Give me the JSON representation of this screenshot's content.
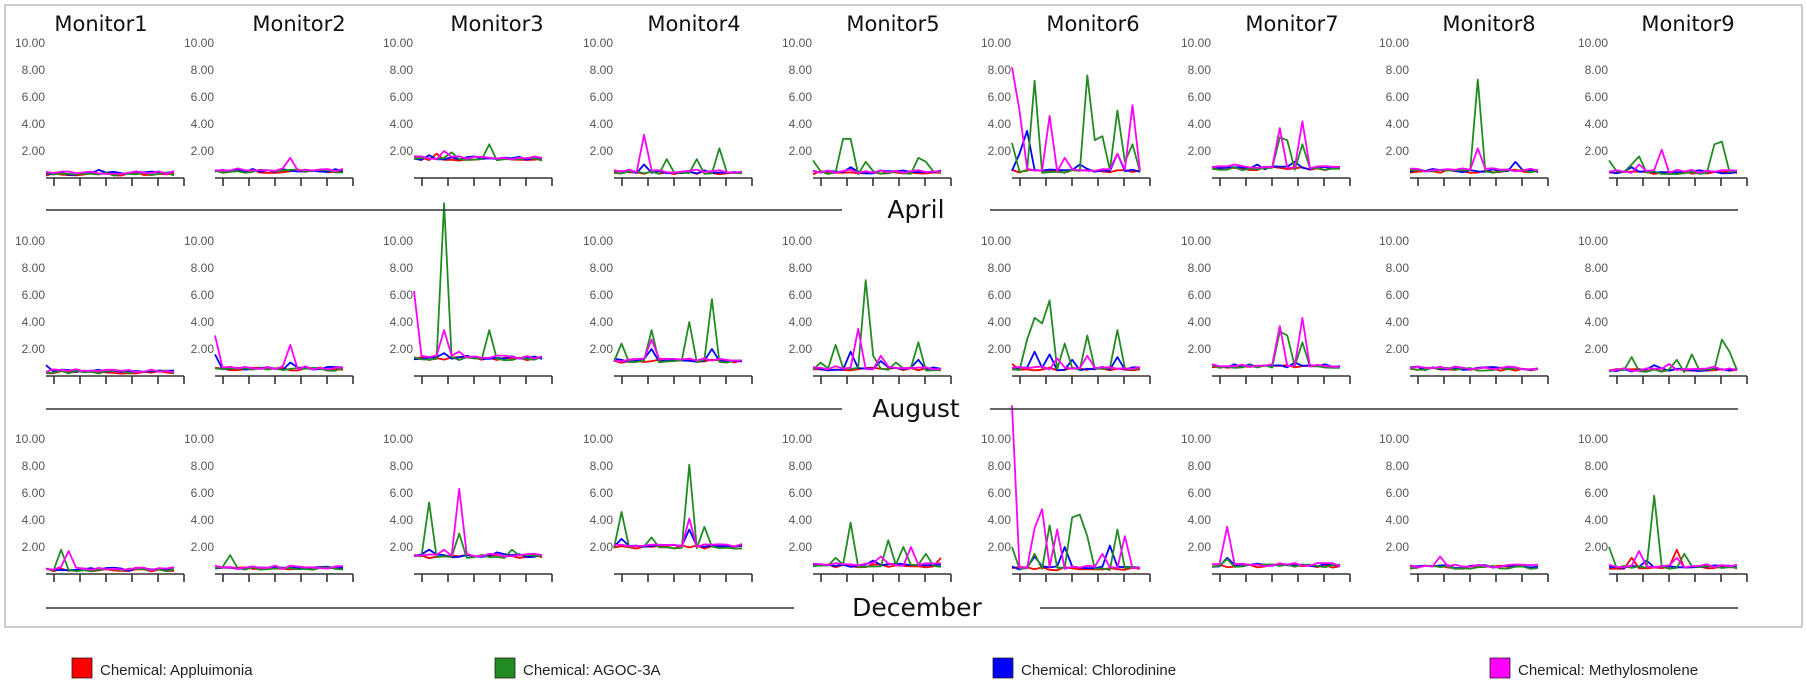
{
  "chart_data": {
    "type": "line",
    "monitors": [
      "Monitor1",
      "Monitor2",
      "Monitor3",
      "Monitor4",
      "Monitor5",
      "Monitor6",
      "Monitor7",
      "Monitor8",
      "Monitor9"
    ],
    "months": [
      "April",
      "August",
      "December"
    ],
    "y_ticks": [
      "2.00",
      "4.00",
      "6.00",
      "8.00",
      "10.00"
    ],
    "ylim": [
      0,
      10
    ],
    "legend_position": "bottom",
    "grid": false,
    "series": [
      {
        "name": "Chemical: Appluimonia",
        "color": "#ff0000"
      },
      {
        "name": "Chemical: AGOC-3A",
        "color": "#228b22"
      },
      {
        "name": "Chemical: Chlorodinine",
        "color": "#0000ff"
      },
      {
        "name": "Chemical: Methylosmolene",
        "color": "#ff00ff"
      }
    ],
    "panels": [
      [
        {
          "base": 0.3,
          "spikes": [
            [],
            [],
            [
              [
                7,
                0.6
              ]
            ],
            []
          ]
        },
        {
          "base": 0.5,
          "spikes": [
            [],
            [],
            [],
            [
              [
                10,
                1.5
              ]
            ]
          ]
        },
        {
          "base": 1.4,
          "spikes": [
            [
              [
                3,
                1.8
              ]
            ],
            [
              [
                5,
                1.9
              ],
              [
                10,
                2.5
              ]
            ],
            [
              [
                2,
                1.7
              ],
              [
                8,
                1.6
              ]
            ],
            [
              [
                4,
                2.0
              ]
            ]
          ]
        },
        {
          "base": 0.4,
          "spikes": [
            [],
            [
              [
                7,
                1.4
              ],
              [
                11,
                1.4
              ],
              [
                14,
                2.2
              ]
            ],
            [
              [
                4,
                1.0
              ]
            ],
            [
              [
                4,
                3.2
              ]
            ]
          ]
        },
        {
          "base": 0.4,
          "spikes": [
            [],
            [
              [
                0,
                1.3
              ],
              [
                4,
                2.9
              ],
              [
                5,
                2.9
              ],
              [
                7,
                1.2
              ],
              [
                14,
                1.5
              ],
              [
                15,
                1.2
              ]
            ],
            [
              [
                5,
                0.8
              ]
            ],
            []
          ]
        },
        {
          "base": 0.5,
          "spikes": [
            [],
            [
              [
                0,
                2.6
              ],
              [
                3,
                7.2
              ],
              [
                10,
                7.6
              ],
              [
                11,
                2.8
              ],
              [
                12,
                3.1
              ],
              [
                14,
                5.0
              ],
              [
                15,
                1.2
              ],
              [
                16,
                2.5
              ]
            ],
            [
              [
                1,
                1.8
              ],
              [
                2,
                3.5
              ],
              [
                9,
                1.0
              ],
              [
                14,
                1.8
              ]
            ],
            [
              [
                0,
                8.2
              ],
              [
                1,
                5.0
              ],
              [
                5,
                4.6
              ],
              [
                7,
                1.5
              ],
              [
                14,
                1.8
              ],
              [
                16,
                5.4
              ]
            ]
          ]
        },
        {
          "base": 0.7,
          "spikes": [
            [],
            [
              [
                9,
                3.0
              ],
              [
                10,
                2.8
              ],
              [
                12,
                2.5
              ]
            ],
            [
              [
                6,
                1.0
              ],
              [
                11,
                1.2
              ]
            ],
            [
              [
                9,
                3.7
              ],
              [
                12,
                4.2
              ],
              [
                3,
                1.0
              ]
            ]
          ]
        },
        {
          "base": 0.5,
          "spikes": [
            [],
            [
              [
                9,
                7.3
              ]
            ],
            [
              [
                14,
                1.2
              ]
            ],
            [
              [
                9,
                2.2
              ]
            ]
          ]
        },
        {
          "base": 0.4,
          "spikes": [
            [],
            [
              [
                0,
                1.3
              ],
              [
                3,
                1.0
              ],
              [
                4,
                1.6
              ],
              [
                14,
                2.5
              ],
              [
                15,
                2.7
              ]
            ],
            [
              [
                3,
                0.8
              ]
            ],
            [
              [
                7,
                2.1
              ],
              [
                4,
                1.0
              ]
            ]
          ]
        }
      ],
      [
        {
          "base": 0.3,
          "spikes": [
            [],
            [],
            [
              [
                0,
                0.8
              ]
            ],
            []
          ]
        },
        {
          "base": 0.5,
          "spikes": [
            [],
            [],
            [
              [
                0,
                1.6
              ],
              [
                10,
                1.0
              ]
            ],
            [
              [
                0,
                3.0
              ],
              [
                10,
                2.3
              ]
            ]
          ]
        },
        {
          "base": 1.3,
          "spikes": [
            [],
            [
              [
                4,
                12.8
              ],
              [
                10,
                3.4
              ]
            ],
            [
              [
                4,
                1.7
              ],
              [
                7,
                1.5
              ]
            ],
            [
              [
                0,
                6.3
              ],
              [
                4,
                3.4
              ],
              [
                6,
                1.8
              ]
            ]
          ]
        },
        {
          "base": 1.1,
          "spikes": [
            [],
            [
              [
                1,
                2.4
              ],
              [
                5,
                3.4
              ],
              [
                10,
                4.0
              ],
              [
                13,
                5.7
              ]
            ],
            [
              [
                5,
                2.0
              ],
              [
                13,
                2.0
              ]
            ],
            [
              [
                5,
                2.7
              ]
            ]
          ]
        },
        {
          "base": 0.5,
          "spikes": [
            [],
            [
              [
                1,
                1.0
              ],
              [
                3,
                2.3
              ],
              [
                7,
                7.1
              ],
              [
                8,
                1.5
              ],
              [
                11,
                1.0
              ],
              [
                14,
                2.5
              ]
            ],
            [
              [
                5,
                1.8
              ],
              [
                9,
                1.1
              ],
              [
                14,
                1.2
              ]
            ],
            [
              [
                6,
                3.5
              ],
              [
                9,
                1.5
              ]
            ]
          ]
        },
        {
          "base": 0.5,
          "spikes": [
            [
              [
                0,
                0.9
              ]
            ],
            [
              [
                2,
                2.7
              ],
              [
                3,
                4.3
              ],
              [
                4,
                3.9
              ],
              [
                5,
                5.6
              ],
              [
                7,
                2.4
              ],
              [
                10,
                3.0
              ],
              [
                14,
                3.4
              ]
            ],
            [
              [
                3,
                1.8
              ],
              [
                5,
                1.6
              ],
              [
                8,
                1.2
              ],
              [
                14,
                1.4
              ]
            ],
            [
              [
                6,
                1.3
              ],
              [
                10,
                1.5
              ]
            ]
          ]
        },
        {
          "base": 0.7,
          "spikes": [
            [],
            [
              [
                9,
                3.3
              ],
              [
                10,
                3.0
              ],
              [
                12,
                2.5
              ]
            ],
            [
              [
                11,
                1.0
              ]
            ],
            [
              [
                9,
                3.7
              ],
              [
                12,
                4.3
              ]
            ]
          ]
        },
        {
          "base": 0.5,
          "spikes": [
            [],
            [],
            [
              [
                1,
                0.7
              ]
            ],
            []
          ]
        },
        {
          "base": 0.4,
          "spikes": [
            [],
            [
              [
                3,
                1.4
              ],
              [
                9,
                1.2
              ],
              [
                11,
                1.6
              ],
              [
                15,
                2.7
              ],
              [
                16,
                1.8
              ]
            ],
            [
              [
                6,
                0.8
              ]
            ],
            [
              [
                8,
                0.9
              ],
              [
                14,
                0.7
              ]
            ]
          ]
        }
      ],
      [
        {
          "base": 0.3,
          "spikes": [
            [],
            [
              [
                2,
                1.8
              ]
            ],
            [],
            [
              [
                3,
                1.7
              ]
            ]
          ]
        },
        {
          "base": 0.4,
          "spikes": [
            [],
            [
              [
                2,
                1.4
              ]
            ],
            [],
            []
          ]
        },
        {
          "base": 1.3,
          "spikes": [
            [],
            [
              [
                2,
                5.3
              ],
              [
                6,
                3.0
              ],
              [
                13,
                1.8
              ]
            ],
            [
              [
                2,
                1.8
              ],
              [
                11,
                1.6
              ]
            ],
            [
              [
                6,
                6.3
              ],
              [
                4,
                1.8
              ]
            ]
          ]
        },
        {
          "base": 2.0,
          "spikes": [
            [],
            [
              [
                1,
                4.6
              ],
              [
                5,
                2.7
              ],
              [
                10,
                8.1
              ],
              [
                12,
                3.5
              ]
            ],
            [
              [
                1,
                2.6
              ],
              [
                10,
                3.3
              ]
            ],
            [
              [
                10,
                4.1
              ]
            ]
          ]
        },
        {
          "base": 0.6,
          "spikes": [
            [
              [
                17,
                1.2
              ]
            ],
            [
              [
                3,
                1.2
              ],
              [
                5,
                3.8
              ],
              [
                10,
                2.5
              ],
              [
                12,
                2.0
              ],
              [
                15,
                1.5
              ]
            ],
            [
              [
                8,
                1.0
              ]
            ],
            [
              [
                13,
                2.0
              ],
              [
                9,
                1.3
              ]
            ]
          ]
        },
        {
          "base": 0.4,
          "spikes": [
            [],
            [
              [
                0,
                2.0
              ],
              [
                3,
                1.5
              ],
              [
                5,
                3.6
              ],
              [
                8,
                4.2
              ],
              [
                9,
                4.4
              ],
              [
                10,
                2.8
              ],
              [
                14,
                3.3
              ]
            ],
            [
              [
                3,
                1.3
              ],
              [
                7,
                2.0
              ],
              [
                13,
                2.1
              ]
            ],
            [
              [
                0,
                12.5
              ],
              [
                3,
                3.4
              ],
              [
                4,
                4.8
              ],
              [
                6,
                3.3
              ],
              [
                15,
                2.8
              ],
              [
                12,
                1.5
              ]
            ]
          ]
        },
        {
          "base": 0.6,
          "spikes": [
            [],
            [
              [
                2,
                1.1
              ]
            ],
            [
              [
                2,
                1.2
              ]
            ],
            [
              [
                2,
                3.5
              ]
            ]
          ]
        },
        {
          "base": 0.5,
          "spikes": [
            [],
            [],
            [],
            [
              [
                4,
                1.3
              ]
            ]
          ]
        },
        {
          "base": 0.5,
          "spikes": [
            [
              [
                9,
                1.8
              ],
              [
                3,
                1.2
              ]
            ],
            [
              [
                0,
                2.0
              ],
              [
                6,
                5.8
              ],
              [
                10,
                1.5
              ]
            ],
            [
              [
                5,
                1.0
              ]
            ],
            [
              [
                4,
                1.7
              ],
              [
                9,
                1.2
              ]
            ]
          ]
        }
      ]
    ]
  }
}
